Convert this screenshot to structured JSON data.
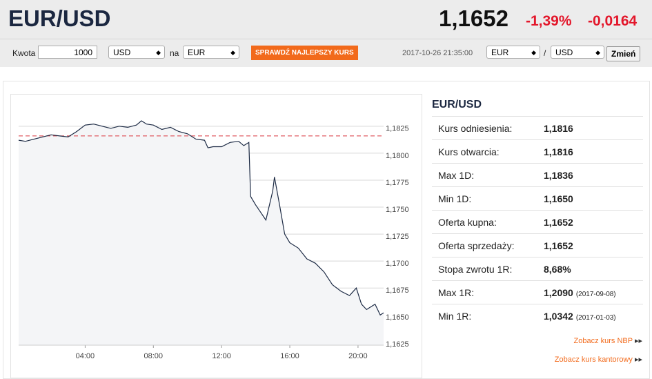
{
  "header": {
    "title": "EUR/USD",
    "rate": "1,1652",
    "change_pct": "-1,39%",
    "change_abs": "-0,0164"
  },
  "controls": {
    "amount_label": "Kwota",
    "amount": "1000",
    "from": "USD",
    "to_label": "na",
    "to": "EUR",
    "button": "SPRAWDŹ NAJLEPSZY KURS",
    "timestamp": "2017-10-26 21:35:00",
    "pair_base": "EUR",
    "separator": "/",
    "pair_quote": "USD",
    "swap": "Zmień"
  },
  "chart_data": {
    "type": "line",
    "color": "#1c2a44",
    "area_color": "#f4f5f7",
    "ref_line": 1.1816,
    "ref_color": "#d9363e",
    "grid": true,
    "x": [
      0.1,
      0.5,
      1.0,
      1.5,
      2.0,
      2.5,
      3.0,
      3.5,
      4.0,
      4.5,
      5.0,
      5.5,
      6.0,
      6.5,
      7.0,
      7.3,
      7.6,
      8.0,
      8.5,
      9.0,
      9.5,
      10.0,
      10.5,
      11.0,
      11.2,
      11.5,
      12.0,
      12.5,
      13.0,
      13.3,
      13.6,
      13.7,
      14.0,
      14.3,
      14.6,
      15.0,
      15.1,
      15.4,
      15.7,
      16.0,
      16.5,
      17.0,
      17.5,
      18.0,
      18.5,
      19.0,
      19.5,
      19.9,
      20.2,
      20.5,
      21.0,
      21.3,
      21.5
    ],
    "values": [
      1.1812,
      1.1811,
      1.1813,
      1.1815,
      1.1817,
      1.1816,
      1.1815,
      1.182,
      1.1826,
      1.1827,
      1.1825,
      1.1823,
      1.1825,
      1.1824,
      1.1826,
      1.183,
      1.1827,
      1.1826,
      1.1822,
      1.1824,
      1.182,
      1.1818,
      1.1813,
      1.1812,
      1.1805,
      1.1806,
      1.1806,
      1.181,
      1.1811,
      1.1807,
      1.181,
      1.176,
      1.1752,
      1.1745,
      1.1738,
      1.1765,
      1.1778,
      1.1752,
      1.1725,
      1.1717,
      1.1712,
      1.1702,
      1.1698,
      1.169,
      1.1678,
      1.1672,
      1.1668,
      1.1675,
      1.166,
      1.1655,
      1.166,
      1.165,
      1.1652
    ],
    "xlim": [
      0.1,
      21.5
    ],
    "ylim": [
      1.1622,
      1.1846
    ],
    "xticks": [
      {
        "value": 4,
        "label": "04:00"
      },
      {
        "value": 8,
        "label": "08:00"
      },
      {
        "value": 12,
        "label": "12:00"
      },
      {
        "value": 16,
        "label": "16:00"
      },
      {
        "value": 20,
        "label": "20:00"
      }
    ],
    "yticks": [
      {
        "value": 1.1625,
        "label": "1,1625"
      },
      {
        "value": 1.165,
        "label": "1,1650"
      },
      {
        "value": 1.1675,
        "label": "1,1675"
      },
      {
        "value": 1.17,
        "label": "1,1700"
      },
      {
        "value": 1.1725,
        "label": "1,1725"
      },
      {
        "value": 1.175,
        "label": "1,1750"
      },
      {
        "value": 1.1775,
        "label": "1,1775"
      },
      {
        "value": 1.18,
        "label": "1,1800"
      },
      {
        "value": 1.1825,
        "label": "1,1825"
      }
    ]
  },
  "table": {
    "title": "EUR/USD",
    "rows": [
      [
        "Kurs odniesienia:",
        "1,1816"
      ],
      [
        "Kurs otwarcia:",
        "1,1816"
      ],
      [
        "Max 1D:",
        "1,1836"
      ],
      [
        "Min 1D:",
        "1,1650"
      ],
      [
        "Oferta kupna:",
        "1,1652"
      ],
      [
        "Oferta sprzedaży:",
        "1,1652"
      ],
      [
        "Stopa zwrotu 1R:",
        "8,68%"
      ],
      [
        "Max 1R:",
        "1,2090",
        "(2017-09-08)"
      ],
      [
        "Min 1R:",
        "1,0342",
        "(2017-01-03)"
      ]
    ],
    "links": [
      "Zobacz kurs NBP",
      "Zobacz kurs kantorowy"
    ]
  }
}
